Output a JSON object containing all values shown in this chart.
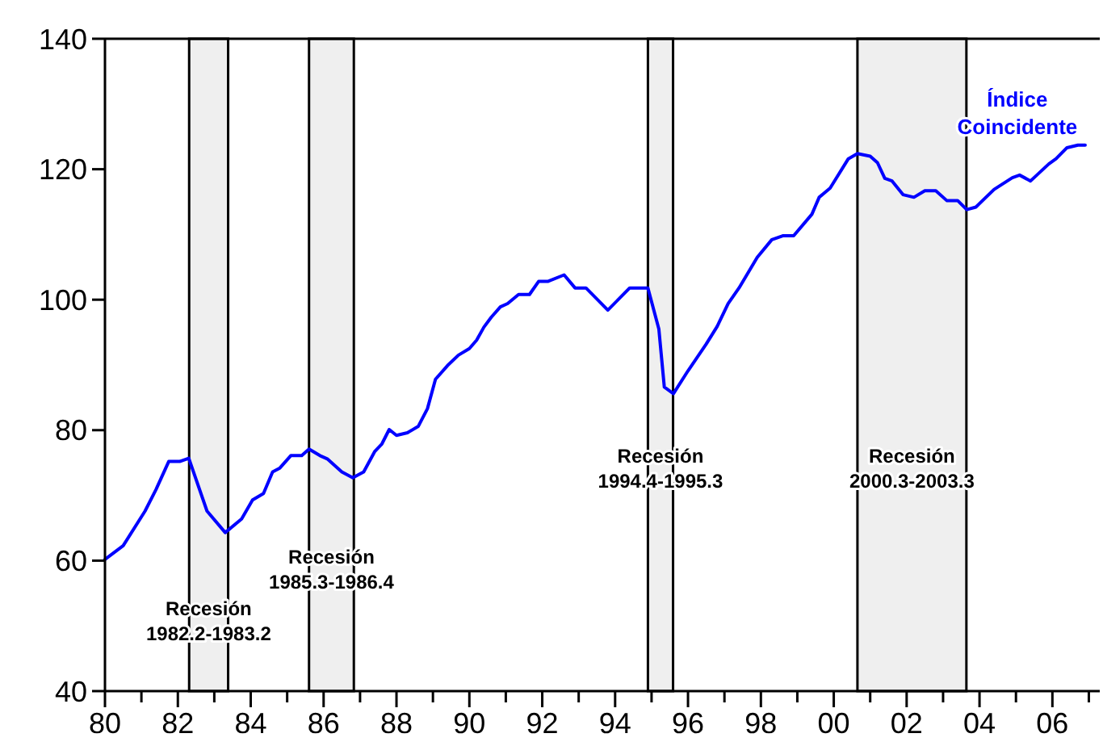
{
  "chart_data": {
    "type": "line",
    "xlim": [
      1980,
      2007.3
    ],
    "ylim": [
      40,
      140
    ],
    "xticks": [
      {
        "value": 1980,
        "label": "80"
      },
      {
        "value": 1981,
        "label": null
      },
      {
        "value": 1982,
        "label": "82"
      },
      {
        "value": 1983,
        "label": null
      },
      {
        "value": 1984,
        "label": "84"
      },
      {
        "value": 1985,
        "label": null
      },
      {
        "value": 1986,
        "label": "86"
      },
      {
        "value": 1987,
        "label": null
      },
      {
        "value": 1988,
        "label": "88"
      },
      {
        "value": 1989,
        "label": null
      },
      {
        "value": 1990,
        "label": "90"
      },
      {
        "value": 1991,
        "label": null
      },
      {
        "value": 1992,
        "label": "92"
      },
      {
        "value": 1993,
        "label": null
      },
      {
        "value": 1994,
        "label": "94"
      },
      {
        "value": 1995,
        "label": null
      },
      {
        "value": 1996,
        "label": "96"
      },
      {
        "value": 1997,
        "label": null
      },
      {
        "value": 1998,
        "label": "98"
      },
      {
        "value": 1999,
        "label": null
      },
      {
        "value": 2000,
        "label": "00"
      },
      {
        "value": 2001,
        "label": null
      },
      {
        "value": 2002,
        "label": "02"
      },
      {
        "value": 2003,
        "label": null
      },
      {
        "value": 2004,
        "label": "04"
      },
      {
        "value": 2005,
        "label": null
      },
      {
        "value": 2006,
        "label": "06"
      },
      {
        "value": 2007,
        "label": null
      }
    ],
    "yticks": [
      40,
      60,
      80,
      100,
      120,
      140
    ],
    "line_style": "solid",
    "marker": "none",
    "grid": false,
    "series": [
      {
        "name": "Índice\nCoincidente",
        "color": "#0000ff",
        "x": [
          1980.0,
          1980.5,
          1981.1,
          1981.4,
          1981.75,
          1982.05,
          1982.3,
          1982.8,
          1983.3,
          1983.75,
          1984.05,
          1984.35,
          1984.6,
          1984.8,
          1985.1,
          1985.4,
          1985.6,
          1985.9,
          1986.1,
          1986.5,
          1986.8,
          1987.1,
          1987.4,
          1987.6,
          1987.8,
          1988.0,
          1988.3,
          1988.6,
          1988.85,
          1989.07,
          1989.4,
          1989.7,
          1990.0,
          1990.2,
          1990.4,
          1990.6,
          1990.85,
          1991.05,
          1991.35,
          1991.65,
          1991.9,
          1992.15,
          1992.6,
          1992.9,
          1993.2,
          1993.8,
          1994.4,
          1994.9,
          1995.2,
          1995.35,
          1995.6,
          1996.0,
          1996.5,
          1996.8,
          1997.1,
          1997.4,
          1997.9,
          1998.3,
          1998.6,
          1998.9,
          1999.4,
          1999.6,
          1999.9,
          2000.4,
          2000.65,
          2001.0,
          2001.2,
          2001.4,
          2001.6,
          2001.9,
          2002.2,
          2002.5,
          2002.8,
          2003.1,
          2003.4,
          2003.65,
          2003.9,
          2004.4,
          2004.9,
          2005.1,
          2005.4,
          2005.9,
          2006.1,
          2006.4,
          2006.7,
          2006.9
        ],
        "values": [
          60.2,
          62.3,
          67.6,
          70.9,
          75.2,
          75.2,
          75.7,
          67.6,
          64.3,
          66.4,
          69.3,
          70.3,
          73.6,
          74.2,
          76.1,
          76.1,
          77.1,
          76.1,
          75.6,
          73.6,
          72.7,
          73.6,
          76.7,
          77.9,
          80.1,
          79.2,
          79.6,
          80.6,
          83.3,
          87.8,
          89.9,
          91.5,
          92.5,
          93.8,
          95.8,
          97.3,
          98.9,
          99.4,
          100.8,
          100.8,
          102.8,
          102.8,
          103.8,
          101.8,
          101.8,
          98.4,
          101.8,
          101.8,
          95.5,
          86.6,
          85.6,
          89.1,
          93.2,
          95.9,
          99.4,
          101.8,
          106.5,
          109.2,
          109.8,
          109.8,
          113.1,
          115.7,
          117.1,
          121.6,
          122.4,
          122.0,
          121.0,
          118.6,
          118.2,
          116.1,
          115.7,
          116.7,
          116.7,
          115.2,
          115.2,
          113.8,
          114.2,
          116.9,
          118.7,
          119.1,
          118.2,
          120.8,
          121.6,
          123.3,
          123.7,
          123.7
        ]
      }
    ],
    "bands": [
      {
        "axis": "x",
        "from": 1982.31,
        "to": 1983.38,
        "label": "Recesión\n1982.2-1983.2",
        "color": "#efefef"
      },
      {
        "axis": "x",
        "from": 1985.6,
        "to": 1986.83,
        "label": "Recesión\n1985.3-1986.4",
        "color": "#efefef"
      },
      {
        "axis": "x",
        "from": 1994.9,
        "to": 1995.59,
        "label": "Recesión\n1994.4-1995.3",
        "color": "#efefef"
      },
      {
        "axis": "x",
        "from": 2000.65,
        "to": 2003.64,
        "label": "Recesión\n2000.3-2003.3",
        "color": "#efefef"
      }
    ]
  }
}
